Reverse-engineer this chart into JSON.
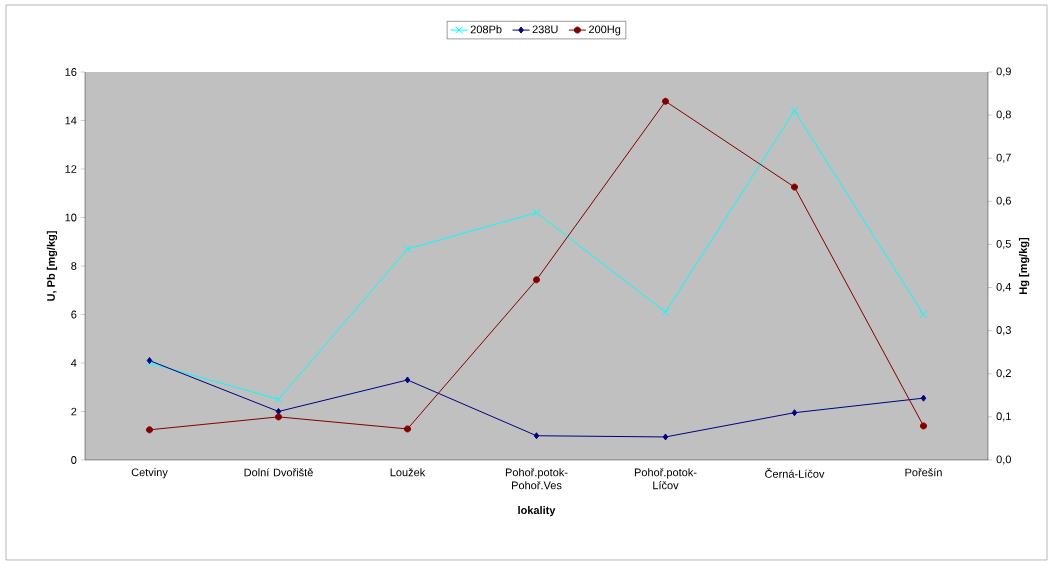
{
  "chart_data": {
    "type": "line",
    "categories": [
      "Cetviny",
      "Dolní Dvořiště",
      "Loužek",
      "Pohoř.potok-Pohoř.Ves",
      "Pohoř.potok-Líčov",
      "Černá-Líčov",
      "Pořešín"
    ],
    "series": [
      {
        "name": "208Pb",
        "color": "#00ffff",
        "marker": "cross",
        "values": [
          4.0,
          2.5,
          8.7,
          10.2,
          6.1,
          14.4,
          6.0
        ]
      },
      {
        "name": "238U",
        "color": "#000080",
        "marker": "diamond",
        "values": [
          4.1,
          2.0,
          3.3,
          1.0,
          0.95,
          1.95,
          2.55
        ]
      },
      {
        "name": "200Hg",
        "color": "#800000",
        "marker": "circle",
        "axis": "y2",
        "values": [
          0.07,
          0.1,
          0.072,
          0.418,
          0.832,
          0.633,
          0.079
        ]
      }
    ],
    "xlabel": "lokality",
    "ylabel": "U, Pb [mg/kg]",
    "y2label": "Hg [mg/kg]",
    "ylim": [
      0,
      16
    ],
    "yticks": [
      0,
      2,
      4,
      6,
      8,
      10,
      12,
      14,
      16
    ],
    "y2lim": [
      0,
      0.9
    ],
    "y2ticks": [
      {
        "value": 0,
        "label": "0,0"
      },
      {
        "value": 0.1,
        "label": "0,1"
      },
      {
        "value": 0.2,
        "label": "0,2"
      },
      {
        "value": 0.3,
        "label": "0,3"
      },
      {
        "value": 0.4,
        "label": "0,4"
      },
      {
        "value": 0.5,
        "label": "0,5"
      },
      {
        "value": 0.6,
        "label": "0,6"
      },
      {
        "value": 0.7,
        "label": "0,7"
      },
      {
        "value": 0.8,
        "label": "0,8"
      },
      {
        "value": 0.9,
        "label": "0,9"
      }
    ],
    "line_style": "solid",
    "legend": "top"
  }
}
